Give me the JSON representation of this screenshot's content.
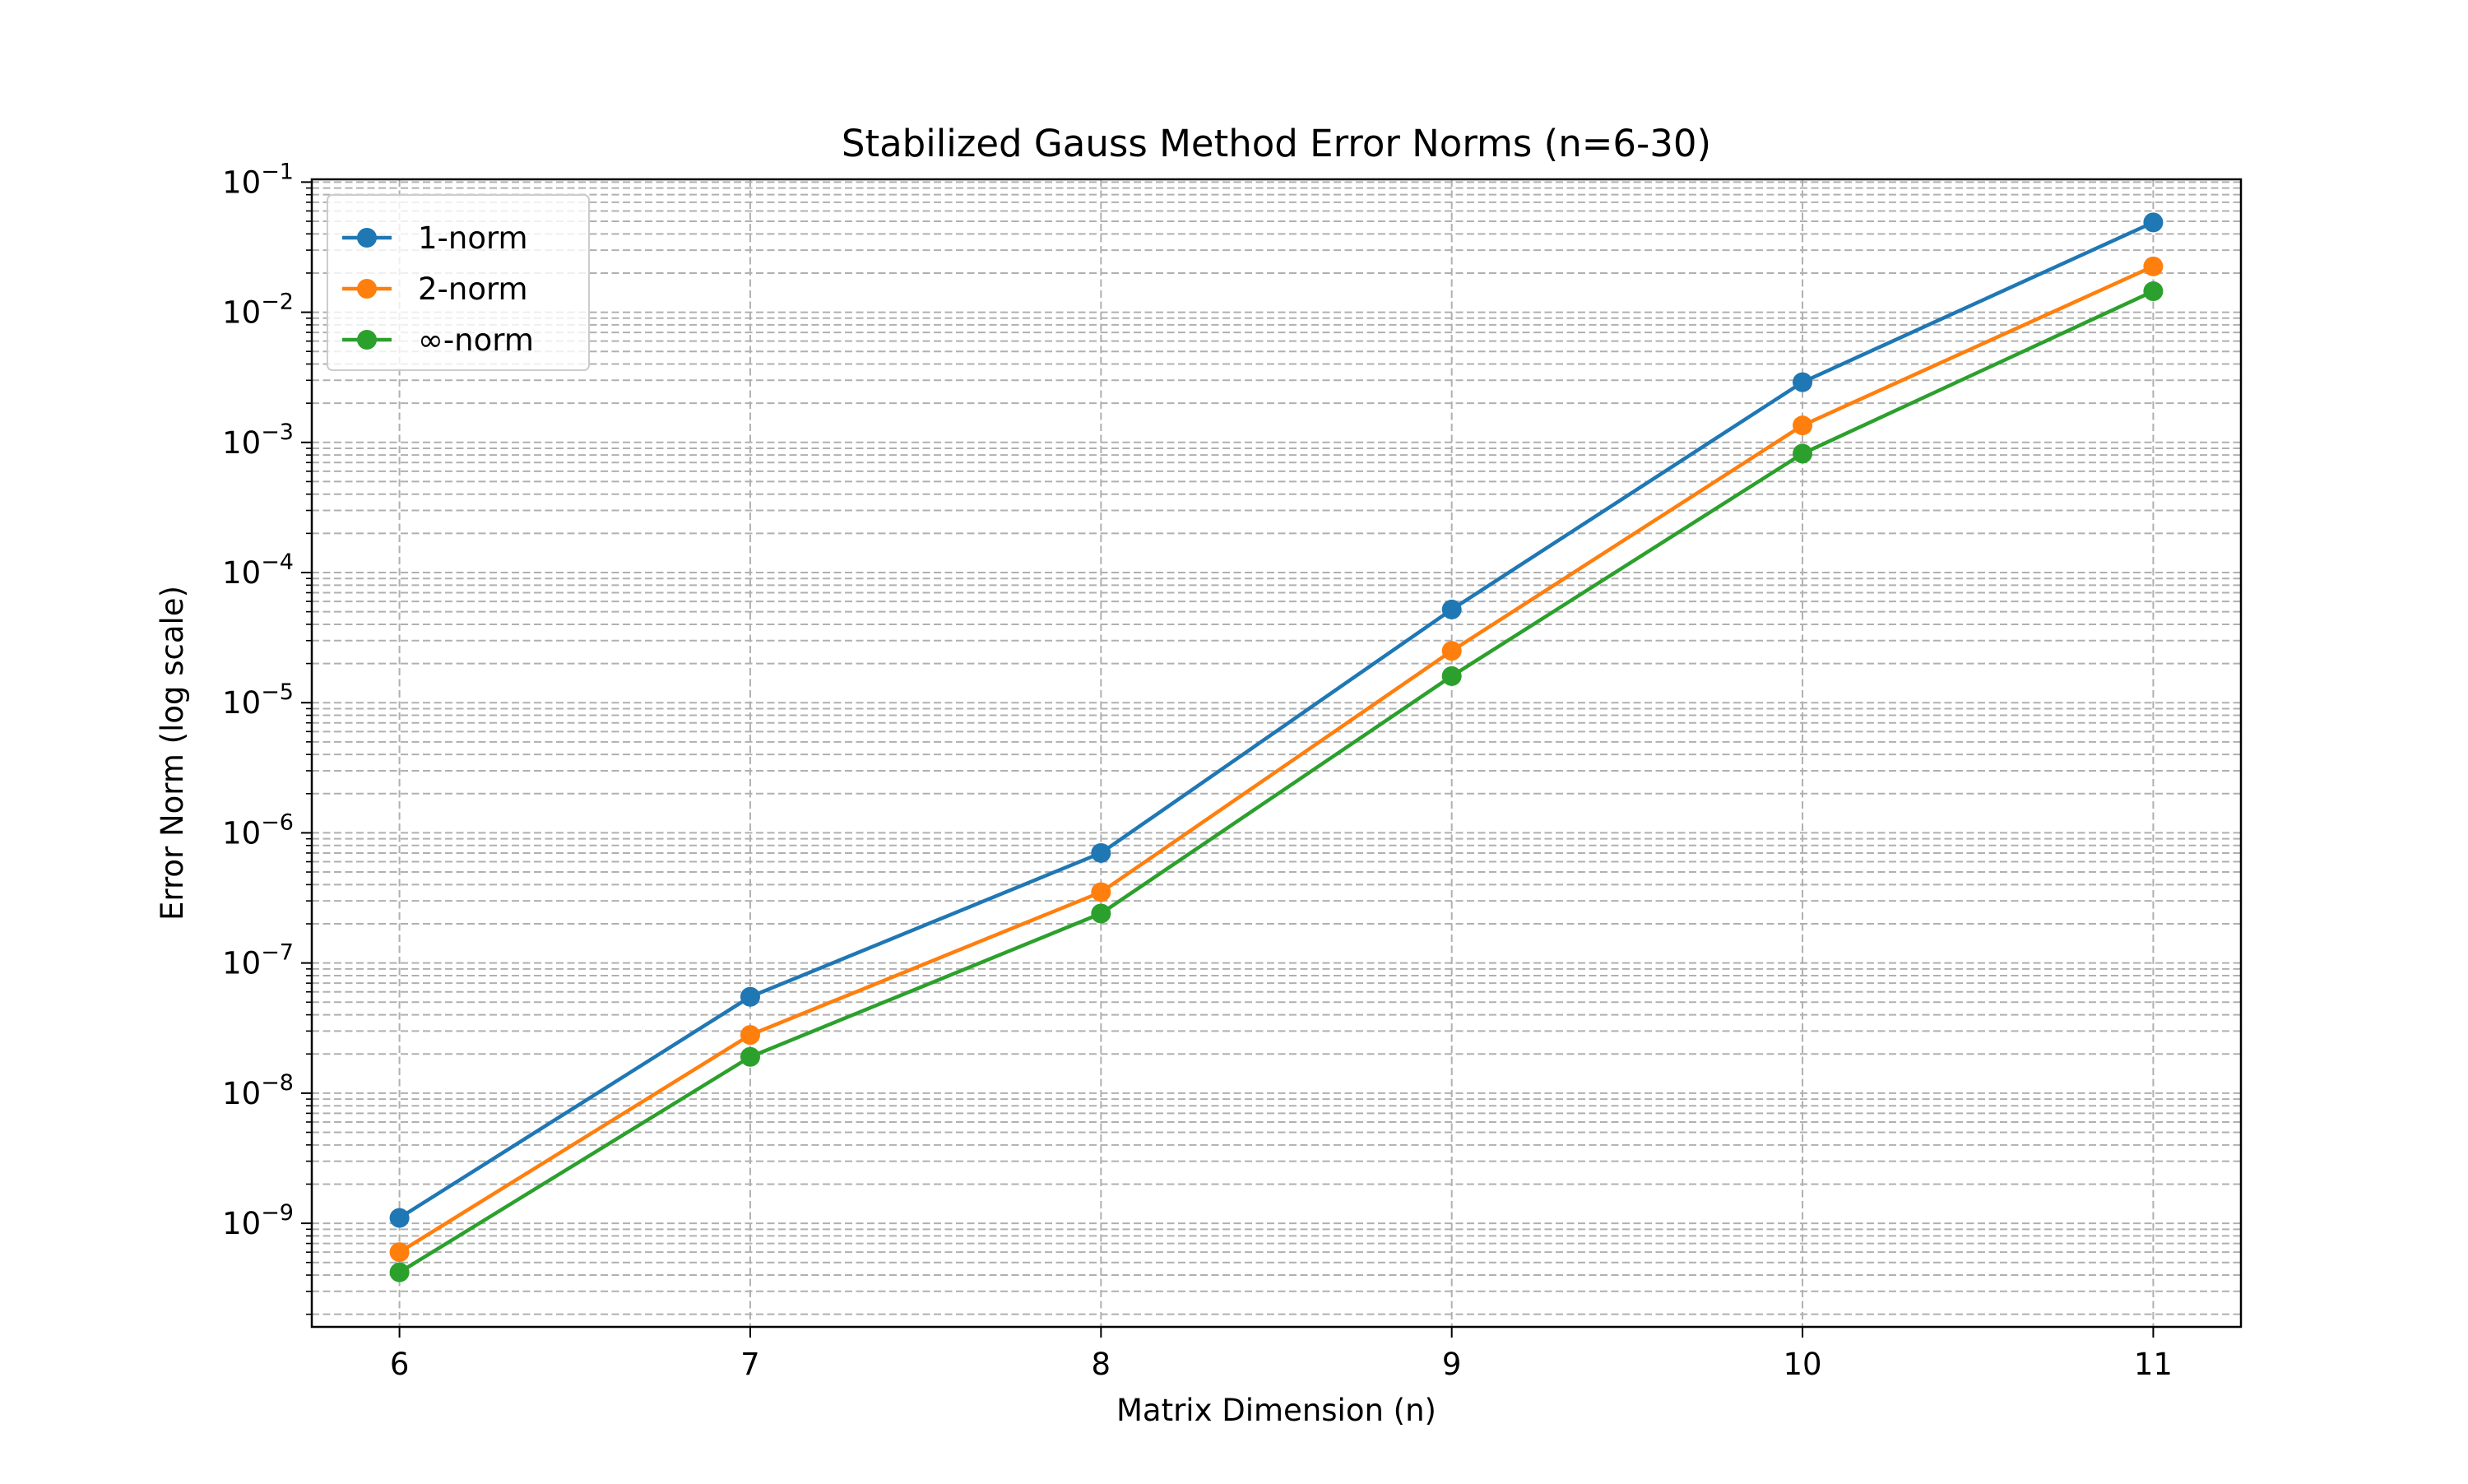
{
  "chart_data": {
    "type": "line",
    "title": "Stabilized Gauss Method Error Norms (n=6-30)",
    "xlabel": "Matrix Dimension (n)",
    "ylabel": "Error Norm (log scale)",
    "x": [
      6,
      7,
      8,
      9,
      10,
      11
    ],
    "x_ticks": [
      6,
      7,
      8,
      9,
      10,
      11
    ],
    "x_tick_labels": [
      "6",
      "7",
      "8",
      "9",
      "10",
      "11"
    ],
    "xlim": [
      5.75,
      11.25
    ],
    "yscale": "log",
    "ylim": [
      1.6e-10,
      0.105
    ],
    "y_major_ticks": [
      {
        "value": 1e-09,
        "base": "10",
        "exp": "−9"
      },
      {
        "value": 1e-08,
        "base": "10",
        "exp": "−8"
      },
      {
        "value": 1e-07,
        "base": "10",
        "exp": "−7"
      },
      {
        "value": 1e-06,
        "base": "10",
        "exp": "−6"
      },
      {
        "value": 1e-05,
        "base": "10",
        "exp": "−5"
      },
      {
        "value": 0.0001,
        "base": "10",
        "exp": "−4"
      },
      {
        "value": 0.001,
        "base": "10",
        "exp": "−3"
      },
      {
        "value": 0.01,
        "base": "10",
        "exp": "−2"
      },
      {
        "value": 0.1,
        "base": "10",
        "exp": "−1"
      }
    ],
    "grid": true,
    "grid_minor": true,
    "legend_position": "upper-left",
    "series": [
      {
        "name": "1-norm",
        "color": "#1f77b4",
        "values": [
          1.1e-09,
          5.5e-08,
          7e-07,
          5.2e-05,
          0.0029,
          0.049
        ]
      },
      {
        "name": "2-norm",
        "color": "#ff7f0e",
        "values": [
          6e-10,
          2.8e-08,
          3.5e-07,
          2.5e-05,
          0.00135,
          0.0225
        ]
      },
      {
        "name": "∞-norm",
        "color": "#2ca02c",
        "values": [
          4.2e-10,
          1.9e-08,
          2.4e-07,
          1.6e-05,
          0.00082,
          0.0145
        ]
      }
    ]
  }
}
